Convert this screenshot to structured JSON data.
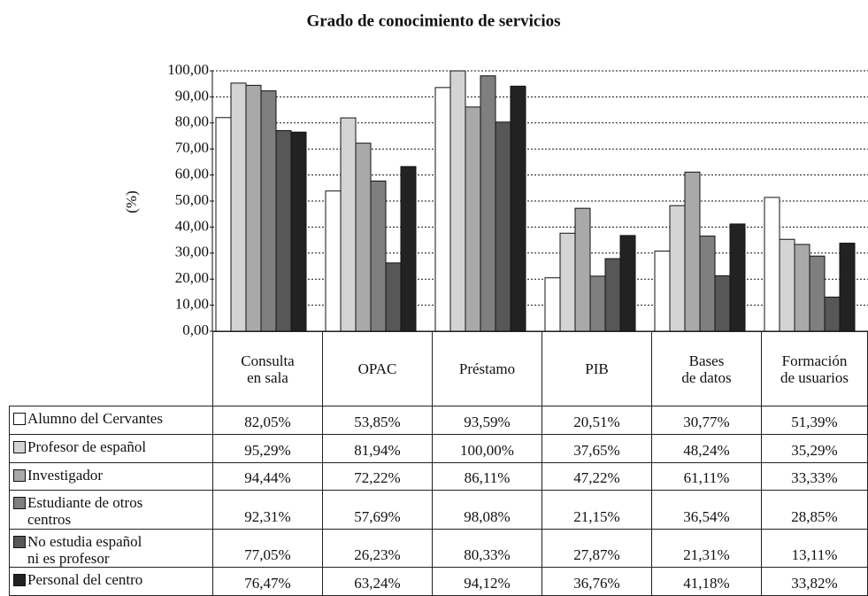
{
  "chart_data": {
    "type": "bar",
    "title": "Grado de conocimiento de servicios",
    "y_label": "(%)",
    "categories": [
      "Consulta\nen sala",
      "OPAC",
      "Préstamo",
      "PIB",
      "Bases\nde datos",
      "Formación\nde usuarios"
    ],
    "ylim": [
      0,
      100
    ],
    "yticks": [
      {
        "value": 0,
        "label": "0,00"
      },
      {
        "value": 10,
        "label": "10,00"
      },
      {
        "value": 20,
        "label": "20,00"
      },
      {
        "value": 30,
        "label": "30,00"
      },
      {
        "value": 40,
        "label": "40,00"
      },
      {
        "value": 50,
        "label": "50,00"
      },
      {
        "value": 60,
        "label": "60,00"
      },
      {
        "value": 70,
        "label": "70,00"
      },
      {
        "value": 80,
        "label": "80,00"
      },
      {
        "value": 90,
        "label": "90,00"
      },
      {
        "value": 100,
        "label": "100,00"
      }
    ],
    "grid": true,
    "series": [
      {
        "name": "Alumno del Cervantes",
        "color": "#ffffff",
        "values": [
          82.05,
          53.85,
          93.59,
          20.51,
          30.77,
          51.39
        ],
        "value_labels": [
          "82,05%",
          "53,85%",
          "93,59%",
          "20,51%",
          "30,77%",
          "51,39%"
        ]
      },
      {
        "name": "Profesor de español",
        "color": "#d4d4d4",
        "values": [
          95.29,
          81.94,
          100.0,
          37.65,
          48.24,
          35.29
        ],
        "value_labels": [
          "95,29%",
          "81,94%",
          "100,00%",
          "37,65%",
          "48,24%",
          "35,29%"
        ]
      },
      {
        "name": "Investigador",
        "color": "#a9a9a9",
        "values": [
          94.44,
          72.22,
          86.11,
          47.22,
          61.11,
          33.33
        ],
        "value_labels": [
          "94,44%",
          "72,22%",
          "86,11%",
          "47,22%",
          "61,11%",
          "33,33%"
        ]
      },
      {
        "name": "Estudiante de otros\ncentros",
        "color": "#7f7f7f",
        "values": [
          92.31,
          57.69,
          98.08,
          21.15,
          36.54,
          28.85
        ],
        "value_labels": [
          "92,31%",
          "57,69%",
          "98,08%",
          "21,15%",
          "36,54%",
          "28,85%"
        ]
      },
      {
        "name": "No estudia español\nni es profesor",
        "color": "#575757",
        "values": [
          77.05,
          26.23,
          80.33,
          27.87,
          21.31,
          13.11
        ],
        "value_labels": [
          "77,05%",
          "26,23%",
          "80,33%",
          "27,87%",
          "21,31%",
          "13,11%"
        ]
      },
      {
        "name": "Personal del centro",
        "color": "#222222",
        "values": [
          76.47,
          63.24,
          94.12,
          36.76,
          41.18,
          33.82
        ],
        "value_labels": [
          "76,47%",
          "63,24%",
          "94,12%",
          "36,76%",
          "41,18%",
          "33,82%"
        ]
      }
    ]
  }
}
